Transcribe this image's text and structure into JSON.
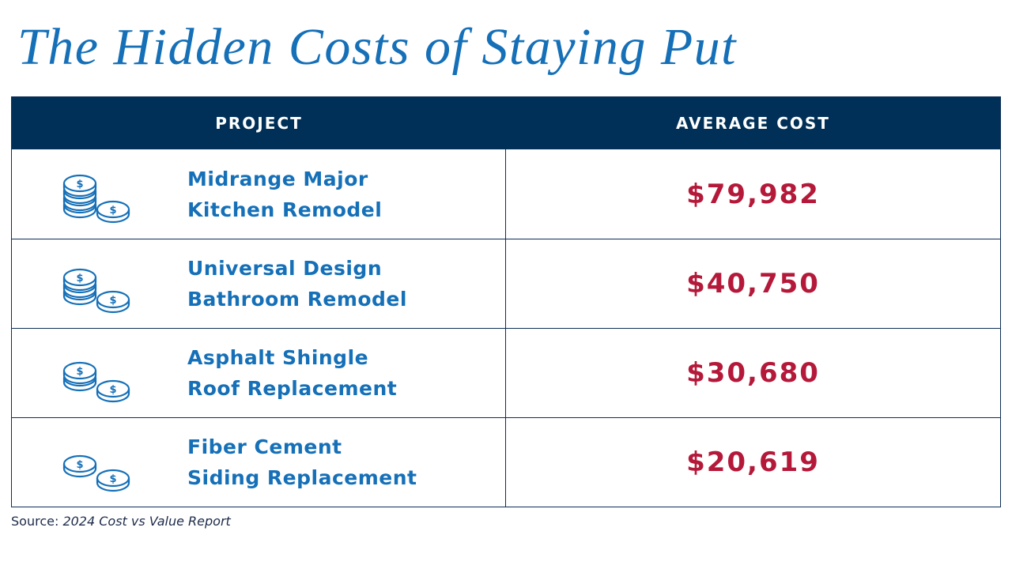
{
  "title": "The Hidden Costs of Staying Put",
  "colors": {
    "title": "#1570b8",
    "header_bg": "#003057",
    "project_text": "#1570b8",
    "cost_text": "#b5193a",
    "border": "#0c2d57"
  },
  "table": {
    "headers": {
      "project": "PROJECT",
      "cost": "AVERAGE COST"
    },
    "rows": [
      {
        "line1": "Midrange Major",
        "line2": "Kitchen Remodel",
        "cost": "$79,982",
        "icon": "coin-stack-large-icon",
        "stack_coins": 4
      },
      {
        "line1": "Universal Design",
        "line2": "Bathroom Remodel",
        "cost": "$40,750",
        "icon": "coin-stack-medium-icon",
        "stack_coins": 3
      },
      {
        "line1": "Asphalt Shingle",
        "line2": "Roof Replacement",
        "cost": "$30,680",
        "icon": "coin-stack-small-icon",
        "stack_coins": 2
      },
      {
        "line1": "Fiber Cement",
        "line2": "Siding Replacement",
        "cost": "$20,619",
        "icon": "coins-icon",
        "stack_coins": 1
      }
    ]
  },
  "source": {
    "label": "Source:",
    "report": "2024 Cost vs Value Report"
  }
}
